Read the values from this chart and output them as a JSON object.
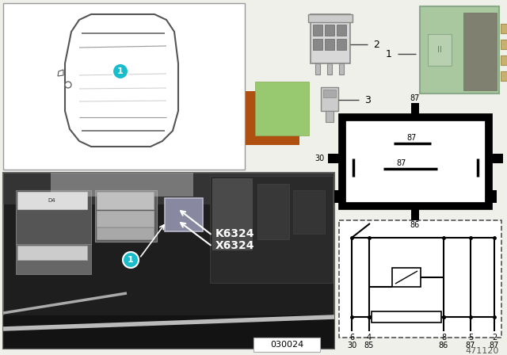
{
  "bg_color": "#f0f0eb",
  "white": "#ffffff",
  "black": "#111111",
  "teal": "#1abccc",
  "green_relay_color": "#aac8a0",
  "brown_color": "#b05010",
  "light_green_color": "#98c870",
  "photo_id": "030024",
  "diagram_id": "471120",
  "k_label": "K6324",
  "x_label": "X6324"
}
